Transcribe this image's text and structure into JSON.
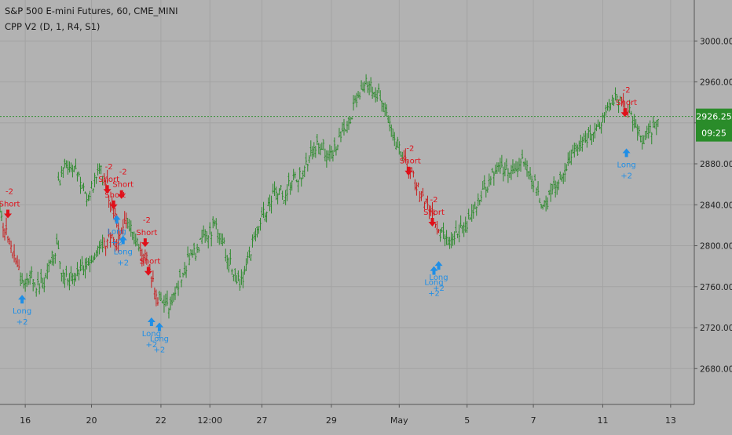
{
  "legend": {
    "symbol_line": "S&P 500 E-mini Futures, 60, CME_MINI",
    "indicator_line": "CPP V2 (D, 1, R4, S1)"
  },
  "price_badge": {
    "price": "2926.25",
    "countdown": "09:25"
  },
  "colors": {
    "background": "#b2b2b2",
    "grid": "#a3a3a3",
    "up_bars": "#2b8a2b",
    "down_bars": "#c81d1d",
    "short_signal": "#e0101a",
    "long_signal": "#1f8ee6",
    "price_badge": "#2a8c2a",
    "axis_text": "#222222"
  },
  "chart_data": {
    "type": "line",
    "style": "ohlc-bars",
    "symbol": "S&P 500 E-mini Futures",
    "interval": "60",
    "exchange": "CME_MINI",
    "grid": true,
    "y_axis_position": "right",
    "ylim": [
      2645,
      3040
    ],
    "y_ticks": [
      3000,
      2960,
      2920,
      2880,
      2840,
      2800,
      2760,
      2720,
      2680
    ],
    "y_tick_labels": [
      "3000.00",
      "2960.00",
      "2920.00",
      "2880.00",
      "2840.00",
      "2800.00",
      "2760.00",
      "2720.00",
      "2680.00"
    ],
    "x_tick_labels": [
      "16",
      "20",
      "22",
      "12:00",
      "27",
      "29",
      "May",
      "5",
      "7",
      "11",
      "13"
    ],
    "x_tick_index": [
      16,
      58,
      102,
      133,
      166,
      210,
      253,
      296,
      338,
      382,
      425
    ],
    "x_range": [
      0,
      440
    ],
    "last_price": 2926.25,
    "close_path": [
      [
        0,
        2830
      ],
      [
        4,
        2812
      ],
      [
        8,
        2798
      ],
      [
        12,
        2775
      ],
      [
        16,
        2765
      ],
      [
        20,
        2772
      ],
      [
        24,
        2760
      ],
      [
        28,
        2765
      ],
      [
        32,
        2785
      ],
      [
        36,
        2800
      ],
      [
        40,
        2770
      ],
      [
        46,
        2765
      ],
      [
        52,
        2780
      ],
      [
        58,
        2790
      ],
      [
        64,
        2800
      ],
      [
        70,
        2810
      ],
      [
        76,
        2798
      ],
      [
        37,
        2860
      ],
      [
        40,
        2878
      ],
      [
        44,
        2880
      ],
      [
        48,
        2872
      ],
      [
        52,
        2858
      ],
      [
        56,
        2845
      ],
      [
        60,
        2865
      ],
      [
        64,
        2872
      ],
      [
        68,
        2858
      ],
      [
        70,
        2840
      ],
      [
        72,
        2830
      ],
      [
        76,
        2815
      ],
      [
        80,
        2822
      ],
      [
        84,
        2812
      ],
      [
        88,
        2800
      ],
      [
        92,
        2790
      ],
      [
        96,
        2770
      ],
      [
        100,
        2750
      ],
      [
        104,
        2740
      ],
      [
        108,
        2745
      ],
      [
        112,
        2760
      ],
      [
        116,
        2775
      ],
      [
        120,
        2788
      ],
      [
        124,
        2795
      ],
      [
        128,
        2805
      ],
      [
        132,
        2812
      ],
      [
        136,
        2820
      ],
      [
        140,
        2810
      ],
      [
        144,
        2790
      ],
      [
        148,
        2775
      ],
      [
        152,
        2762
      ],
      [
        156,
        2780
      ],
      [
        160,
        2800
      ],
      [
        164,
        2815
      ],
      [
        168,
        2835
      ],
      [
        172,
        2845
      ],
      [
        176,
        2855
      ],
      [
        180,
        2850
      ],
      [
        184,
        2862
      ],
      [
        188,
        2868
      ],
      [
        192,
        2870
      ],
      [
        196,
        2885
      ],
      [
        200,
        2895
      ],
      [
        204,
        2900
      ],
      [
        208,
        2885
      ],
      [
        212,
        2895
      ],
      [
        216,
        2905
      ],
      [
        220,
        2915
      ],
      [
        224,
        2935
      ],
      [
        228,
        2950
      ],
      [
        232,
        2958
      ],
      [
        236,
        2955
      ],
      [
        240,
        2948
      ],
      [
        244,
        2932
      ],
      [
        248,
        2912
      ],
      [
        252,
        2900
      ],
      [
        256,
        2885
      ],
      [
        260,
        2873
      ],
      [
        264,
        2858
      ],
      [
        268,
        2845
      ],
      [
        272,
        2835
      ],
      [
        276,
        2825
      ],
      [
        280,
        2810
      ],
      [
        284,
        2800
      ],
      [
        288,
        2805
      ],
      [
        292,
        2815
      ],
      [
        296,
        2822
      ],
      [
        300,
        2835
      ],
      [
        304,
        2848
      ],
      [
        308,
        2858
      ],
      [
        312,
        2868
      ],
      [
        316,
        2880
      ],
      [
        320,
        2875
      ],
      [
        324,
        2868
      ],
      [
        328,
        2878
      ],
      [
        332,
        2882
      ],
      [
        336,
        2870
      ],
      [
        340,
        2855
      ],
      [
        344,
        2835
      ],
      [
        348,
        2845
      ],
      [
        352,
        2860
      ],
      [
        356,
        2870
      ],
      [
        360,
        2880
      ],
      [
        364,
        2890
      ],
      [
        368,
        2898
      ],
      [
        372,
        2905
      ],
      [
        376,
        2912
      ],
      [
        380,
        2918
      ],
      [
        384,
        2930
      ],
      [
        388,
        2945
      ],
      [
        392,
        2940
      ],
      [
        396,
        2935
      ],
      [
        400,
        2928
      ],
      [
        404,
        2912
      ],
      [
        408,
        2898
      ],
      [
        412,
        2912
      ],
      [
        416,
        2920
      ],
      [
        418,
        2926
      ]
    ],
    "signals": [
      {
        "type": "short",
        "label": "Short",
        "qty": "-2",
        "x": 5,
        "price": 2826
      },
      {
        "type": "long",
        "label": "Long",
        "qty": "+2",
        "x": 14,
        "price": 2752
      },
      {
        "type": "short",
        "label": "Short",
        "qty": "-2",
        "x": 68,
        "price": 2850
      },
      {
        "type": "short",
        "label": "Short",
        "qty": "-2",
        "x": 77,
        "price": 2845
      },
      {
        "type": "short",
        "label": "Short",
        "qty": "",
        "x": 72,
        "price": 2835
      },
      {
        "type": "long",
        "label": "Long",
        "qty": "+2",
        "x": 74,
        "price": 2830
      },
      {
        "type": "long",
        "label": "Long",
        "qty": "+2",
        "x": 78,
        "price": 2810
      },
      {
        "type": "short",
        "label": "Short",
        "qty": "-2",
        "x": 92,
        "price": 2798
      },
      {
        "type": "short",
        "label": "Short",
        "qty": "",
        "x": 94,
        "price": 2770
      },
      {
        "type": "long",
        "label": "Long",
        "qty": "+2",
        "x": 96,
        "price": 2730
      },
      {
        "type": "long",
        "label": "Long",
        "qty": "+2",
        "x": 101,
        "price": 2725
      },
      {
        "type": "short",
        "label": "Short",
        "qty": "-2",
        "x": 259,
        "price": 2868
      },
      {
        "type": "short",
        "label": "Short",
        "qty": "-2",
        "x": 274,
        "price": 2818
      },
      {
        "type": "long",
        "label": "Long",
        "qty": "+2",
        "x": 275,
        "price": 2780
      },
      {
        "type": "long",
        "label": "Long",
        "qty": "+2",
        "x": 278,
        "price": 2785
      },
      {
        "type": "short",
        "label": "Short",
        "qty": "-2",
        "x": 396,
        "price": 2925
      },
      {
        "type": "long",
        "label": "Long",
        "qty": "+2",
        "x": 397,
        "price": 2895
      }
    ]
  }
}
